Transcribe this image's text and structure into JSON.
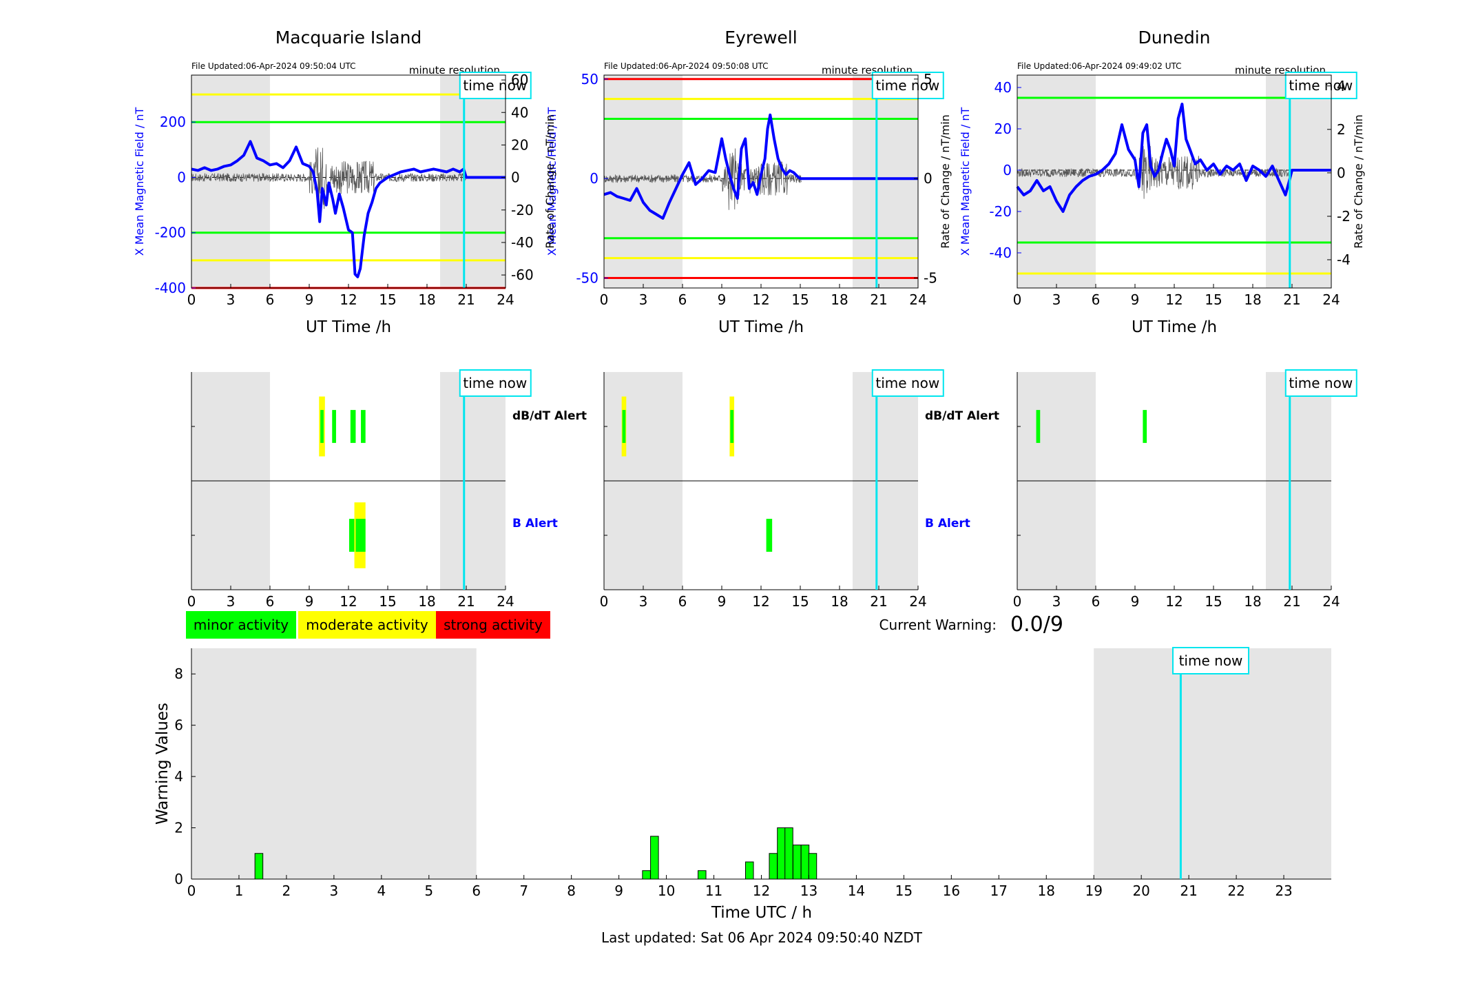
{
  "ticks": {
    "hours_3": [
      "0",
      "3",
      "6",
      "9",
      "12",
      "15",
      "18",
      "21",
      "24"
    ],
    "hours_1": [
      "0",
      "1",
      "2",
      "3",
      "4",
      "5",
      "6",
      "7",
      "8",
      "9",
      "10",
      "11",
      "12",
      "13",
      "14",
      "15",
      "16",
      "17",
      "18",
      "19",
      "20",
      "21",
      "22",
      "23"
    ],
    "warning_y": [
      "0",
      "2",
      "4",
      "6",
      "8"
    ]
  },
  "common": {
    "x_axis_label": "UT Time /h",
    "y_axis_left_label": "X Mean Magnetic Field / nT",
    "y_axis_right_label": "Rate of Change / nT/min",
    "resolution_label": "minute resolution",
    "time_now_label": "time now",
    "time_now_hour": 20.83,
    "night_shading_hours": [
      [
        0,
        6
      ],
      [
        19,
        24
      ]
    ],
    "dbdt_alert_label": "dB/dT Alert",
    "b_alert_label": "B Alert"
  },
  "stations": [
    {
      "name": "Macquarie Island",
      "file_updated": "File Updated:06-Apr-2024 09:50:04 UTC",
      "left_ticks": [
        "-400",
        "-200",
        "0",
        "200"
      ],
      "right_ticks": [
        "-60",
        "-40",
        "-20",
        "0",
        "20",
        "40",
        "60"
      ],
      "show_right_labels": false
    },
    {
      "name": "Eyrewell",
      "file_updated": "File Updated:06-Apr-2024 09:50:08 UTC",
      "left_ticks": [
        "-50",
        "0",
        "50"
      ],
      "right_ticks": [
        "-5",
        "0",
        "5"
      ],
      "show_right_labels": true
    },
    {
      "name": "Dunedin",
      "file_updated": "File Updated:06-Apr-2024 09:49:02 UTC",
      "left_ticks": [
        "-40",
        "-20",
        "0",
        "20",
        "40"
      ],
      "right_ticks": [
        "-4",
        "-2",
        "0",
        "2",
        "4"
      ],
      "show_right_labels": true
    }
  ],
  "legend": [
    {
      "label": "minor activity",
      "color": "#00ff00"
    },
    {
      "label": "moderate activity",
      "color": "#ffff00"
    },
    {
      "label": "strong activity",
      "color": "#ff0000"
    }
  ],
  "current_warning": {
    "label": "Current Warning:",
    "value": "0.0/9"
  },
  "footer": "Last updated: Sat 06 Apr 2024 09:50:40 NZDT",
  "colors": {
    "field_trace": "#0000ff",
    "rate_trace": "#555555",
    "time_now": "#00e5ee",
    "minor": "#00ff00",
    "moderate": "#ffff00",
    "strong": "#ff0000",
    "night_shade": "#e5e5e5"
  },
  "chart_data": [
    {
      "type": "line",
      "title": "Macquarie Island",
      "xlabel": "UT Time /h",
      "ylabel": "X Mean Magnetic Field / nT",
      "ylabel_right": "Rate of Change / nT/min",
      "xlim": [
        0,
        24
      ],
      "ylim": [
        -400,
        370
      ],
      "ylim_right": [
        -68,
        63
      ],
      "thresholds_field": [
        {
          "value": 300,
          "color": "#ffff00"
        },
        {
          "value": 200,
          "color": "#00ff00"
        },
        {
          "value": -200,
          "color": "#00ff00"
        },
        {
          "value": -300,
          "color": "#ffff00"
        },
        {
          "value": -400,
          "color": "#ff0000"
        }
      ],
      "series": [
        {
          "x": [
            0,
            0.5,
            1,
            1.5,
            2,
            2.5,
            3,
            3.5,
            4,
            4.5,
            5,
            5.5,
            6,
            6.5,
            7,
            7.5,
            8,
            8.5,
            9,
            9.3,
            9.6,
            9.8,
            10,
            10.3,
            10.5,
            10.8,
            11,
            11.3,
            11.6,
            12,
            12.3,
            12.5,
            12.7,
            12.9,
            13.2,
            13.5,
            13.8,
            14.1,
            14.4,
            14.7,
            15,
            15.5,
            16,
            16.5,
            17,
            17.5,
            18,
            18.5,
            19,
            19.5,
            20,
            20.5,
            20.8,
            21,
            22,
            23,
            24
          ],
          "y": [
            30,
            25,
            35,
            25,
            30,
            40,
            45,
            60,
            80,
            130,
            70,
            60,
            45,
            50,
            35,
            60,
            110,
            50,
            40,
            20,
            -50,
            -160,
            -40,
            -100,
            -20,
            -80,
            -130,
            -60,
            -110,
            -190,
            -200,
            -350,
            -360,
            -330,
            -210,
            -130,
            -90,
            -40,
            -20,
            -10,
            0,
            10,
            20,
            25,
            30,
            20,
            25,
            30,
            25,
            20,
            30,
            20,
            30,
            0,
            0,
            0,
            0
          ]
        }
      ]
    },
    {
      "type": "line",
      "title": "Eyrewell",
      "xlabel": "UT Time /h",
      "ylabel": "X Mean Magnetic Field / nT",
      "ylabel_right": "Rate of Change / nT/min",
      "xlim": [
        0,
        24
      ],
      "ylim": [
        -55,
        52
      ],
      "ylim_right": [
        -5.5,
        5.2
      ],
      "thresholds_field": [
        {
          "value": 50,
          "color": "#ff0000"
        },
        {
          "value": 40,
          "color": "#ffff00"
        },
        {
          "value": 30,
          "color": "#00ff00"
        },
        {
          "value": -30,
          "color": "#00ff00"
        },
        {
          "value": -40,
          "color": "#ffff00"
        },
        {
          "value": -50,
          "color": "#ff0000"
        }
      ],
      "series": [
        {
          "x": [
            0,
            0.5,
            1,
            1.5,
            2,
            2.5,
            3,
            3.5,
            4,
            4.5,
            5,
            5.5,
            6,
            6.5,
            7,
            7.5,
            8,
            8.5,
            9,
            9.3,
            9.6,
            9.9,
            10.2,
            10.5,
            10.8,
            11.1,
            11.4,
            11.7,
            12,
            12.3,
            12.5,
            12.7,
            13,
            13.3,
            13.6,
            13.9,
            14.2,
            14.5,
            14.8,
            15,
            15.1,
            16,
            20,
            24
          ],
          "y": [
            -8,
            -7,
            -9,
            -10,
            -11,
            -5,
            -12,
            -16,
            -18,
            -20,
            -12,
            -5,
            2,
            8,
            -3,
            0,
            4,
            3,
            20,
            10,
            2,
            -5,
            -10,
            15,
            20,
            -5,
            -2,
            -8,
            2,
            10,
            25,
            32,
            20,
            10,
            5,
            2,
            4,
            3,
            1,
            0,
            0,
            0,
            0,
            0
          ]
        }
      ]
    },
    {
      "type": "line",
      "title": "Dunedin",
      "xlabel": "UT Time /h",
      "ylabel": "X Mean Magnetic Field / nT",
      "ylabel_right": "Rate of Change / nT/min",
      "xlim": [
        0,
        24
      ],
      "ylim": [
        -57,
        46
      ],
      "ylim_right": [
        -5.3,
        4.5
      ],
      "thresholds_field": [
        {
          "value": 35,
          "color": "#00ff00"
        },
        {
          "value": -35,
          "color": "#00ff00"
        },
        {
          "value": -50,
          "color": "#ffff00"
        }
      ],
      "series": [
        {
          "x": [
            0,
            0.5,
            1,
            1.5,
            2,
            2.5,
            3,
            3.5,
            4,
            4.5,
            5,
            5.5,
            6,
            6.5,
            7,
            7.5,
            8,
            8.5,
            9,
            9.3,
            9.6,
            9.9,
            10.2,
            10.5,
            10.8,
            11.1,
            11.4,
            11.7,
            12,
            12.3,
            12.6,
            12.9,
            13.2,
            13.6,
            14,
            14.5,
            15,
            15.5,
            16,
            16.5,
            17,
            17.5,
            18,
            18.5,
            19,
            19.5,
            20,
            20.5,
            20.8,
            21,
            22,
            23,
            24
          ],
          "y": [
            -8,
            -12,
            -10,
            -5,
            -10,
            -8,
            -15,
            -20,
            -12,
            -8,
            -5,
            -3,
            -2,
            0,
            3,
            8,
            22,
            10,
            5,
            -8,
            18,
            22,
            2,
            -3,
            0,
            8,
            15,
            10,
            2,
            25,
            32,
            15,
            10,
            3,
            5,
            0,
            3,
            -2,
            2,
            0,
            3,
            -5,
            2,
            0,
            -3,
            2,
            -5,
            -12,
            -5,
            0,
            0,
            0,
            0
          ]
        }
      ]
    },
    {
      "type": "bar",
      "title": "",
      "xlabel": "Time UTC / h",
      "ylabel": "Warning Values",
      "xlim": [
        0,
        24
      ],
      "ylim": [
        0,
        9
      ],
      "bar_width_hours": 0.167,
      "x": [
        1.42,
        9.58,
        9.75,
        10.75,
        11.75,
        12.25,
        12.42,
        12.58,
        12.75,
        12.92,
        13.08
      ],
      "values": [
        1.0,
        0.33,
        1.67,
        0.33,
        0.67,
        1.0,
        2.0,
        2.0,
        1.33,
        1.33,
        1.0
      ]
    }
  ],
  "alerts": [
    {
      "station": "Macquarie Island",
      "dbdt": [
        {
          "start": 9.75,
          "end": 10.2,
          "level": "moderate",
          "height": 1.0
        },
        {
          "start": 9.85,
          "end": 10.1,
          "level": "minor",
          "height": 0.55
        },
        {
          "start": 10.75,
          "end": 11.05,
          "level": "minor",
          "height": 0.55
        },
        {
          "start": 12.15,
          "end": 12.55,
          "level": "minor",
          "height": 0.55
        },
        {
          "start": 12.95,
          "end": 13.3,
          "level": "minor",
          "height": 0.55
        }
      ],
      "b": [
        {
          "start": 12.05,
          "end": 12.45,
          "level": "minor",
          "height": 0.55
        },
        {
          "start": 12.45,
          "end": 13.3,
          "level": "moderate",
          "height": 1.1
        },
        {
          "start": 12.55,
          "end": 13.3,
          "level": "minor",
          "height": 0.55
        }
      ]
    },
    {
      "station": "Eyrewell",
      "dbdt": [
        {
          "start": 1.35,
          "end": 1.7,
          "level": "moderate",
          "height": 1.0
        },
        {
          "start": 1.4,
          "end": 1.65,
          "level": "minor",
          "height": 0.55
        },
        {
          "start": 9.6,
          "end": 9.95,
          "level": "moderate",
          "height": 1.0
        },
        {
          "start": 9.65,
          "end": 9.9,
          "level": "minor",
          "height": 0.55
        }
      ],
      "b": [
        {
          "start": 12.4,
          "end": 12.85,
          "level": "minor",
          "height": 0.55
        }
      ]
    },
    {
      "station": "Dunedin",
      "dbdt": [
        {
          "start": 1.45,
          "end": 1.75,
          "level": "minor",
          "height": 0.55
        },
        {
          "start": 9.6,
          "end": 9.9,
          "level": "minor",
          "height": 0.55
        }
      ],
      "b": []
    }
  ]
}
